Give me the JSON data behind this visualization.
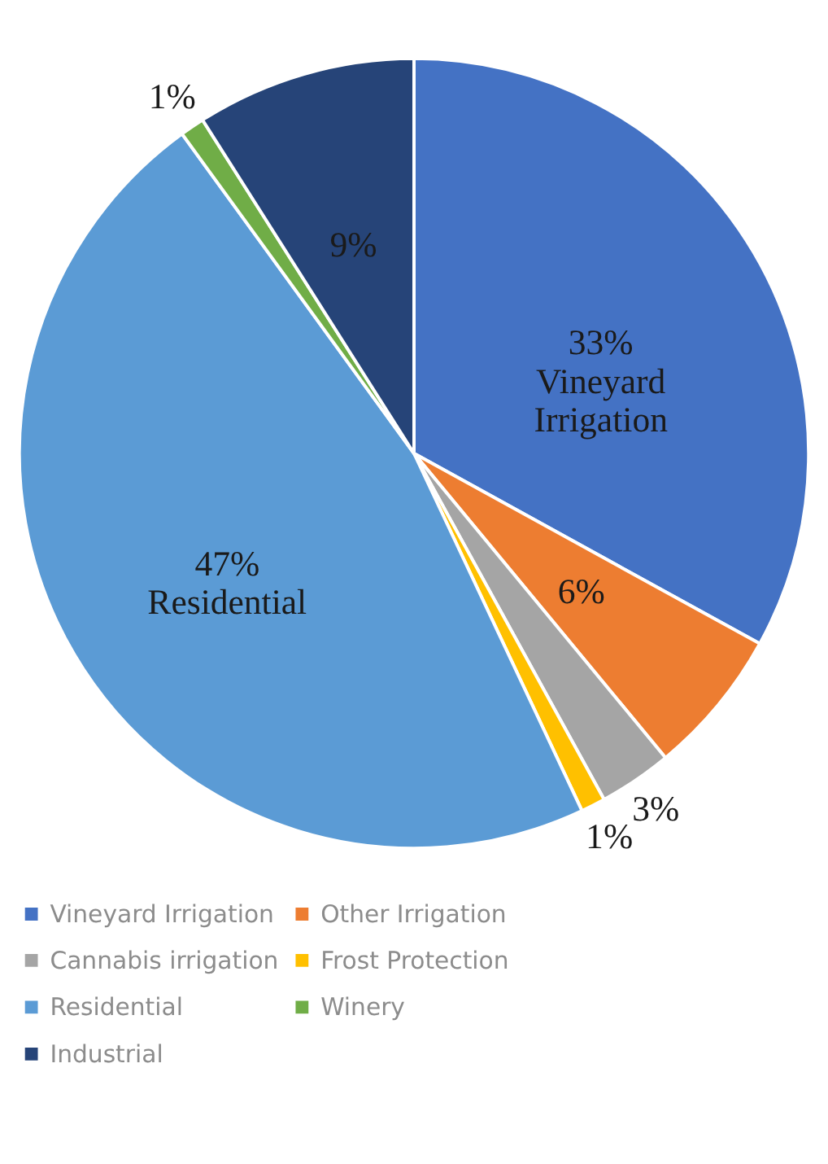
{
  "chart_data": {
    "type": "pie",
    "categories": [
      "Vineyard Irrigation",
      "Other Irrigation",
      "Cannabis irrigation",
      "Frost Protection",
      "Residential",
      "Winery",
      "Industrial"
    ],
    "values": [
      33,
      6,
      3,
      1,
      47,
      1,
      9
    ],
    "colors": [
      "#4472c4",
      "#ed7d31",
      "#a5a5a5",
      "#ffc000",
      "#5b9bd5",
      "#70ad47",
      "#264478"
    ],
    "value_labels": [
      "33%\nVineyard\nIrrigation",
      "6%",
      "3%",
      "1%",
      "47%\nResidential",
      "1%",
      "9%"
    ],
    "legend": "bottom"
  }
}
